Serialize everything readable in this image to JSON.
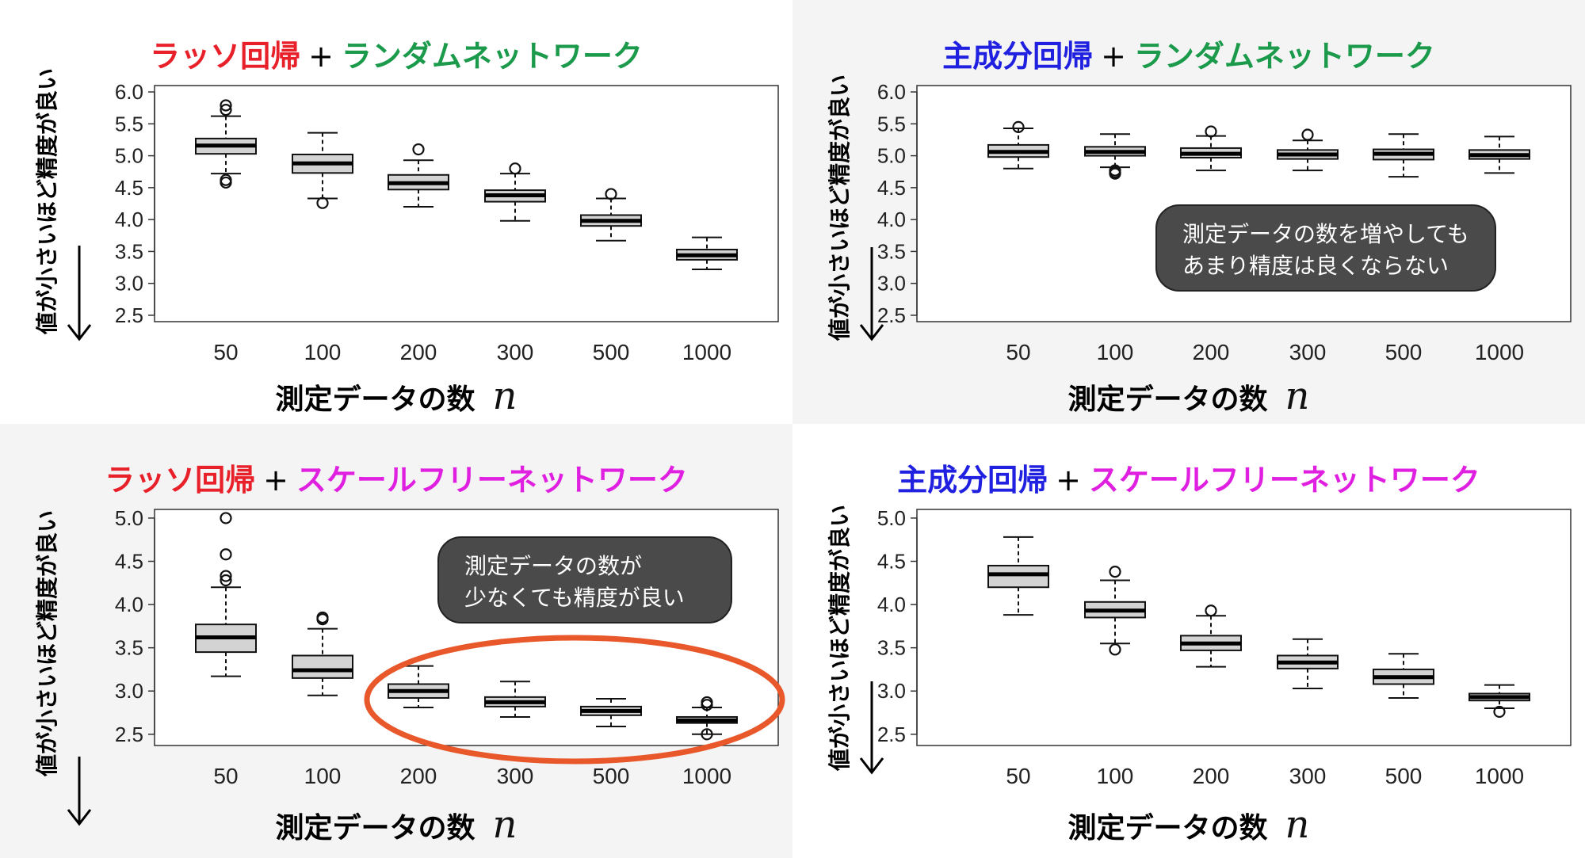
{
  "colors": {
    "lasso": "#e8202a",
    "pca": "#2020e0",
    "random": "#1a9a4a",
    "scalefree": "#e020e0",
    "panel_gray": "#f4f4f4",
    "box_fill": "#d3d3d3",
    "ellipse": "#e8582a"
  },
  "panels": [
    {
      "title_method": "ラッソ回帰",
      "title_plus": "+",
      "title_network": "ランダムネットワーク",
      "ylabel": "値が小さいほど精度が良い",
      "xlabel": "測定データの数",
      "xvar": "n",
      "background": "white",
      "callout": null
    },
    {
      "title_method": "主成分回帰",
      "title_plus": "+",
      "title_network": "ランダムネットワーク",
      "ylabel": "値が小さいほど精度が良い",
      "xlabel": "測定データの数",
      "xvar": "n",
      "background": "gray",
      "callout": [
        "測定データの数を増やしても",
        "あまり精度は良くならない"
      ]
    },
    {
      "title_method": "ラッソ回帰",
      "title_plus": "+",
      "title_network": "スケールフリーネットワーク",
      "ylabel": "値が小さいほど精度が良い",
      "xlabel": "測定データの数",
      "xvar": "n",
      "background": "gray",
      "callout": [
        "測定データの数が",
        "少なくても精度が良い"
      ],
      "highlight": "ellipse"
    },
    {
      "title_method": "主成分回帰",
      "title_plus": "+",
      "title_network": "スケールフリーネットワーク",
      "ylabel": "値が小さいほど精度が良い",
      "xlabel": "測定データの数",
      "xvar": "n",
      "background": "white",
      "callout": null
    }
  ],
  "chart_data": [
    {
      "type": "box",
      "categories": [
        "50",
        "100",
        "200",
        "300",
        "500",
        "1000"
      ],
      "ylim": [
        2.4,
        6.1
      ],
      "yticks": [
        "2.5",
        "3.0",
        "3.5",
        "4.0",
        "4.5",
        "5.0",
        "5.5",
        "6.0"
      ],
      "boxes": [
        {
          "whislo": 4.72,
          "q1": 5.03,
          "med": 5.16,
          "q3": 5.27,
          "whishi": 5.62,
          "outliers": [
            5.79,
            5.72,
            4.62,
            4.58
          ]
        },
        {
          "whislo": 4.33,
          "q1": 4.73,
          "med": 4.88,
          "q3": 5.02,
          "whishi": 5.36,
          "outliers": [
            4.26
          ]
        },
        {
          "whislo": 4.2,
          "q1": 4.47,
          "med": 4.57,
          "q3": 4.7,
          "whishi": 4.93,
          "outliers": [
            5.1
          ]
        },
        {
          "whislo": 3.98,
          "q1": 4.28,
          "med": 4.38,
          "q3": 4.46,
          "whishi": 4.72,
          "outliers": [
            4.8
          ]
        },
        {
          "whislo": 3.67,
          "q1": 3.9,
          "med": 3.98,
          "q3": 4.07,
          "whishi": 4.33,
          "outliers": [
            4.4
          ]
        },
        {
          "whislo": 3.22,
          "q1": 3.37,
          "med": 3.44,
          "q3": 3.53,
          "whishi": 3.72,
          "outliers": []
        }
      ]
    },
    {
      "type": "box",
      "categories": [
        "50",
        "100",
        "200",
        "300",
        "500",
        "1000"
      ],
      "ylim": [
        2.4,
        6.1
      ],
      "yticks": [
        "2.5",
        "3.0",
        "3.5",
        "4.0",
        "4.5",
        "5.0",
        "5.5",
        "6.0"
      ],
      "boxes": [
        {
          "whislo": 4.8,
          "q1": 4.98,
          "med": 5.06,
          "q3": 5.17,
          "whishi": 5.43,
          "outliers": [
            5.45
          ]
        },
        {
          "whislo": 4.82,
          "q1": 5.0,
          "med": 5.06,
          "q3": 5.14,
          "whishi": 5.34,
          "outliers": [
            4.77,
            4.74,
            4.72
          ]
        },
        {
          "whislo": 4.77,
          "q1": 4.97,
          "med": 5.03,
          "q3": 5.12,
          "whishi": 5.31,
          "outliers": [
            5.38
          ]
        },
        {
          "whislo": 4.77,
          "q1": 4.95,
          "med": 5.02,
          "q3": 5.09,
          "whishi": 5.24,
          "outliers": [
            5.33
          ]
        },
        {
          "whislo": 4.67,
          "q1": 4.94,
          "med": 5.03,
          "q3": 5.1,
          "whishi": 5.34,
          "outliers": []
        },
        {
          "whislo": 4.73,
          "q1": 4.95,
          "med": 5.01,
          "q3": 5.09,
          "whishi": 5.3,
          "outliers": []
        }
      ]
    },
    {
      "type": "box",
      "categories": [
        "50",
        "100",
        "200",
        "300",
        "500",
        "1000"
      ],
      "ylim": [
        2.37,
        5.1
      ],
      "yticks": [
        "2.5",
        "3.0",
        "3.5",
        "4.0",
        "4.5",
        "5.0"
      ],
      "boxes": [
        {
          "whislo": 3.17,
          "q1": 3.45,
          "med": 3.62,
          "q3": 3.77,
          "whishi": 4.2,
          "outliers": [
            5.0,
            4.58,
            4.33,
            4.28
          ]
        },
        {
          "whislo": 2.95,
          "q1": 3.15,
          "med": 3.24,
          "q3": 3.41,
          "whishi": 3.72,
          "outliers": [
            3.85,
            3.83
          ]
        },
        {
          "whislo": 2.81,
          "q1": 2.92,
          "med": 3.0,
          "q3": 3.08,
          "whishi": 3.29,
          "outliers": []
        },
        {
          "whislo": 2.7,
          "q1": 2.82,
          "med": 2.87,
          "q3": 2.93,
          "whishi": 3.11,
          "outliers": []
        },
        {
          "whislo": 2.59,
          "q1": 2.72,
          "med": 2.77,
          "q3": 2.82,
          "whishi": 2.91,
          "outliers": []
        },
        {
          "whislo": 2.5,
          "q1": 2.63,
          "med": 2.66,
          "q3": 2.7,
          "whishi": 2.81,
          "outliers": [
            2.87,
            2.84,
            2.5
          ]
        }
      ]
    },
    {
      "type": "box",
      "categories": [
        "50",
        "100",
        "200",
        "300",
        "500",
        "1000"
      ],
      "ylim": [
        2.37,
        5.1
      ],
      "yticks": [
        "2.5",
        "3.0",
        "3.5",
        "4.0",
        "4.5",
        "5.0"
      ],
      "boxes": [
        {
          "whislo": 3.88,
          "q1": 4.2,
          "med": 4.35,
          "q3": 4.45,
          "whishi": 4.78,
          "outliers": []
        },
        {
          "whislo": 3.55,
          "q1": 3.85,
          "med": 3.93,
          "q3": 4.03,
          "whishi": 4.28,
          "outliers": [
            4.38,
            3.48
          ]
        },
        {
          "whislo": 3.28,
          "q1": 3.47,
          "med": 3.55,
          "q3": 3.64,
          "whishi": 3.87,
          "outliers": [
            3.93
          ]
        },
        {
          "whislo": 3.03,
          "q1": 3.26,
          "med": 3.33,
          "q3": 3.41,
          "whishi": 3.6,
          "outliers": []
        },
        {
          "whislo": 2.92,
          "q1": 3.08,
          "med": 3.16,
          "q3": 3.25,
          "whishi": 3.43,
          "outliers": []
        },
        {
          "whislo": 2.8,
          "q1": 2.89,
          "med": 2.93,
          "q3": 2.97,
          "whishi": 3.07,
          "outliers": [
            2.76
          ]
        }
      ]
    }
  ]
}
